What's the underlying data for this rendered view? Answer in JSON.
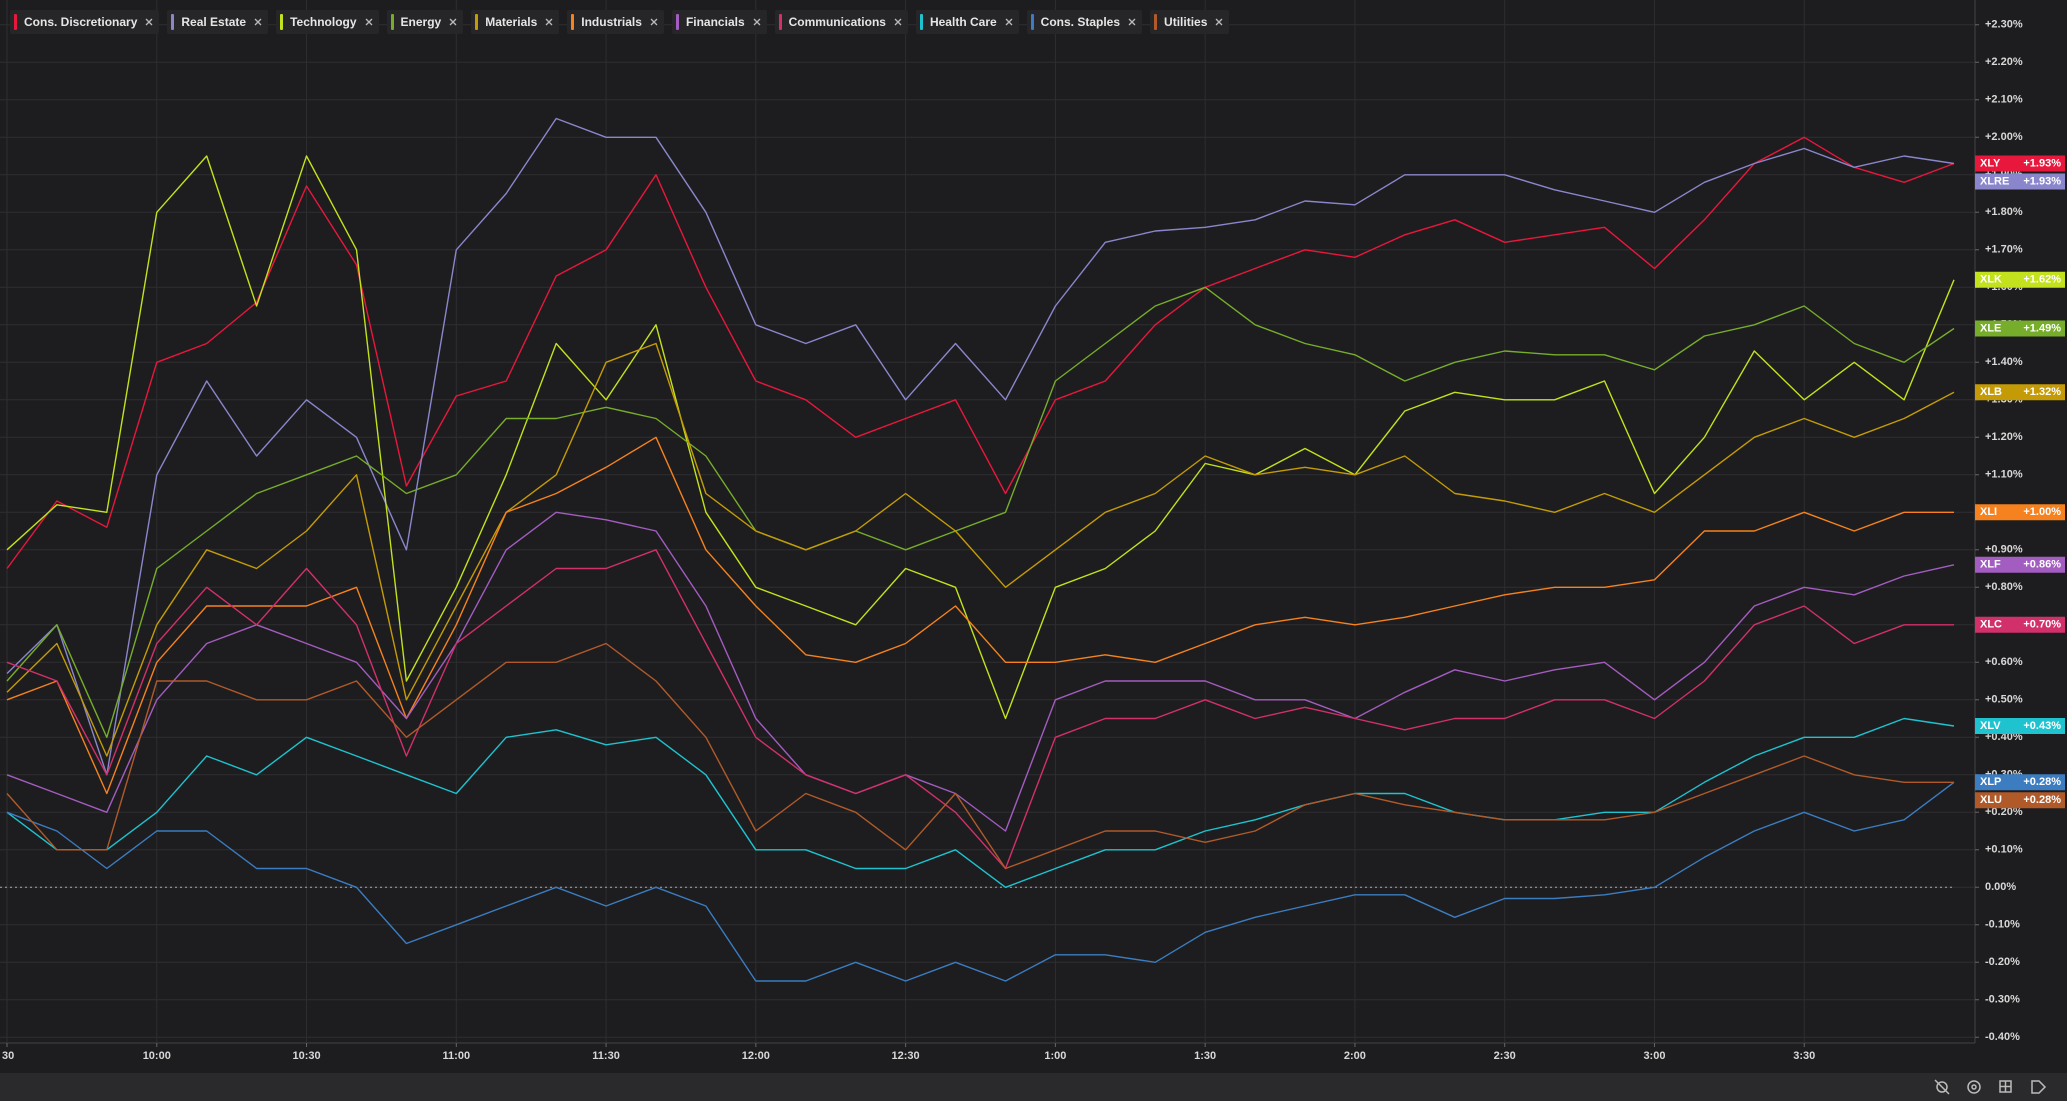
{
  "chart_data": {
    "type": "line",
    "grid": true,
    "zero_line": true,
    "xlim": [
      0,
      390
    ],
    "ylim": [
      -0.41,
      2.35
    ],
    "x": [
      0,
      10,
      20,
      30,
      40,
      50,
      60,
      70,
      80,
      90,
      100,
      110,
      120,
      130,
      140,
      150,
      160,
      170,
      180,
      190,
      200,
      210,
      220,
      230,
      240,
      250,
      260,
      270,
      280,
      290,
      300,
      310,
      320,
      330,
      340,
      350,
      360,
      370,
      380,
      390
    ],
    "xticks": [
      {
        "value": 0,
        "label": "30"
      },
      {
        "value": 30,
        "label": "10:00"
      },
      {
        "value": 60,
        "label": "10:30"
      },
      {
        "value": 90,
        "label": "11:00"
      },
      {
        "value": 120,
        "label": "11:30"
      },
      {
        "value": 150,
        "label": "12:00"
      },
      {
        "value": 180,
        "label": "12:30"
      },
      {
        "value": 210,
        "label": "1:00"
      },
      {
        "value": 240,
        "label": "1:30"
      },
      {
        "value": 270,
        "label": "2:00"
      },
      {
        "value": 300,
        "label": "2:30"
      },
      {
        "value": 330,
        "label": "3:00"
      },
      {
        "value": 360,
        "label": "3:30"
      }
    ],
    "yticks": [
      {
        "value": 2.3,
        "label": "+2.30%"
      },
      {
        "value": 2.2,
        "label": "+2.20%"
      },
      {
        "value": 2.1,
        "label": "+2.10%"
      },
      {
        "value": 2.0,
        "label": "+2.00%"
      },
      {
        "value": 1.9,
        "label": "+1.90%"
      },
      {
        "value": 1.8,
        "label": "+1.80%"
      },
      {
        "value": 1.7,
        "label": "+1.70%"
      },
      {
        "value": 1.6,
        "label": "+1.60%"
      },
      {
        "value": 1.5,
        "label": "+1.50%"
      },
      {
        "value": 1.4,
        "label": "+1.40%"
      },
      {
        "value": 1.3,
        "label": "+1.30%"
      },
      {
        "value": 1.2,
        "label": "+1.20%"
      },
      {
        "value": 1.1,
        "label": "+1.10%"
      },
      {
        "value": 1.0,
        "label": "+1.00%"
      },
      {
        "value": 0.9,
        "label": "+0.90%"
      },
      {
        "value": 0.8,
        "label": "+0.80%"
      },
      {
        "value": 0.7,
        "label": "+0.70%"
      },
      {
        "value": 0.6,
        "label": "+0.60%"
      },
      {
        "value": 0.5,
        "label": "+0.50%"
      },
      {
        "value": 0.4,
        "label": "+0.40%"
      },
      {
        "value": 0.3,
        "label": "+0.30%"
      },
      {
        "value": 0.2,
        "label": "+0.20%"
      },
      {
        "value": 0.1,
        "label": "+0.10%"
      },
      {
        "value": 0,
        "label": "0.00%"
      },
      {
        "value": -0.1,
        "label": "-0.10%"
      },
      {
        "value": -0.2,
        "label": "-0.20%"
      },
      {
        "value": -0.3,
        "label": "-0.30%"
      },
      {
        "value": -0.4,
        "label": "-0.40%"
      }
    ],
    "series": [
      {
        "name": "Cons. Discretionary",
        "ticker": "XLY",
        "last_label": "+1.93%",
        "color": "#e8173c",
        "values": [
          0.85,
          1.03,
          0.96,
          1.4,
          1.45,
          1.56,
          1.87,
          1.66,
          1.07,
          1.31,
          1.35,
          1.63,
          1.7,
          1.9,
          1.6,
          1.35,
          1.3,
          1.2,
          1.25,
          1.3,
          1.05,
          1.3,
          1.35,
          1.5,
          1.6,
          1.65,
          1.7,
          1.68,
          1.74,
          1.78,
          1.72,
          1.74,
          1.76,
          1.65,
          1.78,
          1.93,
          2.0,
          1.92,
          1.88,
          1.93
        ]
      },
      {
        "name": "Real Estate",
        "ticker": "XLRE",
        "last_label": "+1.93%",
        "color": "#8a86cc",
        "values": [
          0.57,
          0.7,
          0.3,
          1.1,
          1.35,
          1.15,
          1.3,
          1.2,
          0.9,
          1.7,
          1.85,
          2.05,
          2.0,
          2.0,
          1.8,
          1.5,
          1.45,
          1.5,
          1.3,
          1.45,
          1.3,
          1.55,
          1.72,
          1.75,
          1.76,
          1.78,
          1.83,
          1.82,
          1.9,
          1.9,
          1.9,
          1.86,
          1.83,
          1.8,
          1.88,
          1.93,
          1.97,
          1.92,
          1.95,
          1.93
        ]
      },
      {
        "name": "Technology",
        "ticker": "XLK",
        "last_label": "+1.62%",
        "color": "#c3e11c",
        "values": [
          0.9,
          1.02,
          1.0,
          1.8,
          1.95,
          1.55,
          1.95,
          1.7,
          0.55,
          0.8,
          1.1,
          1.45,
          1.3,
          1.5,
          1.0,
          0.8,
          0.75,
          0.7,
          0.85,
          0.8,
          0.45,
          0.8,
          0.85,
          0.95,
          1.13,
          1.1,
          1.17,
          1.1,
          1.27,
          1.32,
          1.3,
          1.3,
          1.35,
          1.05,
          1.2,
          1.43,
          1.3,
          1.4,
          1.3,
          1.62
        ]
      },
      {
        "name": "Energy",
        "ticker": "XLE",
        "last_label": "+1.49%",
        "color": "#76ad2a",
        "values": [
          0.55,
          0.7,
          0.4,
          0.85,
          0.95,
          1.05,
          1.1,
          1.15,
          1.05,
          1.1,
          1.25,
          1.25,
          1.28,
          1.25,
          1.15,
          0.95,
          0.9,
          0.95,
          0.9,
          0.95,
          1.0,
          1.35,
          1.45,
          1.55,
          1.6,
          1.5,
          1.45,
          1.42,
          1.35,
          1.4,
          1.43,
          1.42,
          1.42,
          1.38,
          1.47,
          1.5,
          1.55,
          1.45,
          1.4,
          1.49
        ]
      },
      {
        "name": "Materials",
        "ticker": "XLB",
        "last_label": "+1.32%",
        "color": "#c49b06",
        "values": [
          0.52,
          0.65,
          0.35,
          0.7,
          0.9,
          0.85,
          0.95,
          1.1,
          0.5,
          0.75,
          1.0,
          1.1,
          1.4,
          1.45,
          1.05,
          0.95,
          0.9,
          0.95,
          1.05,
          0.95,
          0.8,
          0.9,
          1.0,
          1.05,
          1.15,
          1.1,
          1.12,
          1.1,
          1.15,
          1.05,
          1.03,
          1.0,
          1.05,
          1.0,
          1.1,
          1.2,
          1.25,
          1.2,
          1.25,
          1.32
        ]
      },
      {
        "name": "Industrials",
        "ticker": "XLI",
        "last_label": "+1.00%",
        "color": "#f5821f",
        "values": [
          0.5,
          0.55,
          0.25,
          0.6,
          0.75,
          0.75,
          0.75,
          0.8,
          0.45,
          0.7,
          1.0,
          1.05,
          1.12,
          1.2,
          0.9,
          0.75,
          0.62,
          0.6,
          0.65,
          0.75,
          0.6,
          0.6,
          0.62,
          0.6,
          0.65,
          0.7,
          0.72,
          0.7,
          0.72,
          0.75,
          0.78,
          0.8,
          0.8,
          0.82,
          0.95,
          0.95,
          1.0,
          0.95,
          1.0,
          1.0
        ]
      },
      {
        "name": "Financials",
        "ticker": "XLF",
        "last_label": "+0.86%",
        "color": "#a35cbf",
        "values": [
          0.3,
          0.25,
          0.2,
          0.5,
          0.65,
          0.7,
          0.65,
          0.6,
          0.45,
          0.65,
          0.9,
          1.0,
          0.98,
          0.95,
          0.75,
          0.45,
          0.3,
          0.25,
          0.3,
          0.25,
          0.15,
          0.5,
          0.55,
          0.55,
          0.55,
          0.5,
          0.5,
          0.45,
          0.52,
          0.58,
          0.55,
          0.58,
          0.6,
          0.5,
          0.6,
          0.75,
          0.8,
          0.78,
          0.83,
          0.86
        ]
      },
      {
        "name": "Communications",
        "ticker": "XLC",
        "last_label": "+0.70%",
        "color": "#d2306a",
        "values": [
          0.6,
          0.55,
          0.3,
          0.65,
          0.8,
          0.7,
          0.85,
          0.7,
          0.35,
          0.65,
          0.75,
          0.85,
          0.85,
          0.9,
          0.65,
          0.4,
          0.3,
          0.25,
          0.3,
          0.2,
          0.05,
          0.4,
          0.45,
          0.45,
          0.5,
          0.45,
          0.48,
          0.45,
          0.42,
          0.45,
          0.45,
          0.5,
          0.5,
          0.45,
          0.55,
          0.7,
          0.75,
          0.65,
          0.7,
          0.7
        ]
      },
      {
        "name": "Health Care",
        "ticker": "XLV",
        "last_label": "+0.43%",
        "color": "#1ec3cf",
        "values": [
          0.2,
          0.1,
          0.1,
          0.2,
          0.35,
          0.3,
          0.4,
          0.35,
          0.3,
          0.25,
          0.4,
          0.42,
          0.38,
          0.4,
          0.3,
          0.1,
          0.1,
          0.05,
          0.05,
          0.1,
          0.0,
          0.05,
          0.1,
          0.1,
          0.15,
          0.18,
          0.22,
          0.25,
          0.25,
          0.2,
          0.18,
          0.18,
          0.2,
          0.2,
          0.28,
          0.35,
          0.4,
          0.4,
          0.45,
          0.43
        ]
      },
      {
        "name": "Cons. Staples",
        "ticker": "XLP",
        "last_label": "+0.28%",
        "color": "#3b7dc0",
        "values": [
          0.2,
          0.15,
          0.05,
          0.15,
          0.15,
          0.05,
          0.05,
          0.0,
          -0.15,
          -0.1,
          -0.05,
          0.0,
          -0.05,
          0.0,
          -0.05,
          -0.25,
          -0.25,
          -0.2,
          -0.25,
          -0.2,
          -0.25,
          -0.18,
          -0.18,
          -0.2,
          -0.12,
          -0.08,
          -0.05,
          -0.02,
          -0.02,
          -0.08,
          -0.03,
          -0.03,
          -0.02,
          0.0,
          0.08,
          0.15,
          0.2,
          0.15,
          0.18,
          0.28
        ]
      },
      {
        "name": "Utilities",
        "ticker": "XLU",
        "last_label": "+0.28%",
        "color": "#b05a2a",
        "values": [
          0.25,
          0.1,
          0.1,
          0.55,
          0.55,
          0.5,
          0.5,
          0.55,
          0.4,
          0.5,
          0.6,
          0.6,
          0.65,
          0.55,
          0.4,
          0.15,
          0.25,
          0.2,
          0.1,
          0.25,
          0.05,
          0.1,
          0.15,
          0.15,
          0.12,
          0.15,
          0.22,
          0.25,
          0.22,
          0.2,
          0.18,
          0.18,
          0.18,
          0.2,
          0.25,
          0.3,
          0.35,
          0.3,
          0.28,
          0.28
        ]
      }
    ]
  }
}
